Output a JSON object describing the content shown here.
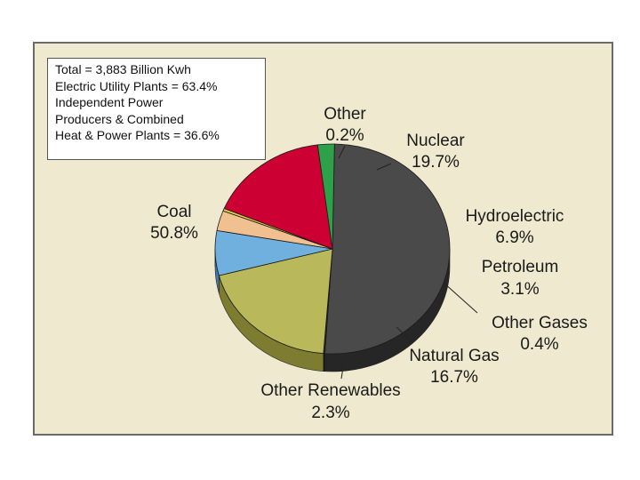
{
  "info_box": {
    "lines": [
      "Total = 3,883 Billion Kwh",
      "Electric Utility Plants = 63.4%",
      "Independent Power",
      "Producers & Combined",
      "Heat & Power Plants = 36.6%"
    ]
  },
  "chart_data": {
    "type": "pie",
    "title": "",
    "slices": [
      {
        "label": "Coal",
        "value": 50.8,
        "value_label": "50.8%",
        "color": "#4a4a4a",
        "side_color": "#262626"
      },
      {
        "label": "Other",
        "value": 0.2,
        "value_label": "0.2%",
        "color": "#2b2b2b",
        "side_color": "#141414"
      },
      {
        "label": "Nuclear",
        "value": 19.7,
        "value_label": "19.7%",
        "color": "#b9b85a",
        "side_color": "#7d7c30"
      },
      {
        "label": "Hydroelectric",
        "value": 6.9,
        "value_label": "6.9%",
        "color": "#6fb0df",
        "side_color": "#3f7aa5"
      },
      {
        "label": "Petroleum",
        "value": 3.1,
        "value_label": "3.1%",
        "color": "#f0c090",
        "side_color": "#b88b5c"
      },
      {
        "label": "Other Gases",
        "value": 0.4,
        "value_label": "0.4%",
        "color": "#e0d040",
        "side_color": "#a09420"
      },
      {
        "label": "Natural Gas",
        "value": 16.7,
        "value_label": "16.7%",
        "color": "#cc0033",
        "side_color": "#7e1a2a"
      },
      {
        "label": "Other Renewables",
        "value": 2.3,
        "value_label": "2.3%",
        "color": "#2ea04a",
        "side_color": "#1d6a30"
      }
    ]
  }
}
